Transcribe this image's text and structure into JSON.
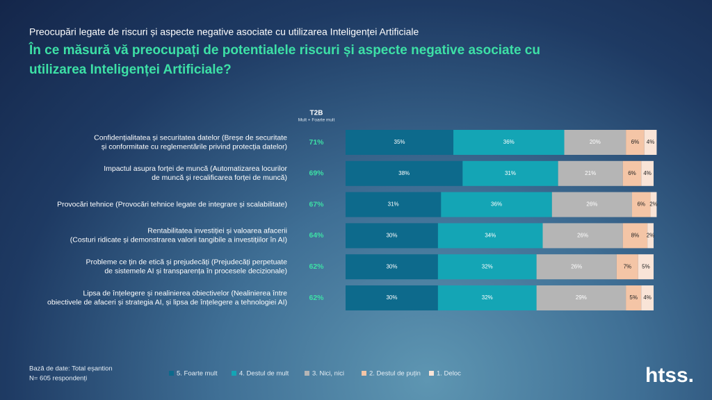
{
  "chart_data": {
    "type": "stacked-bar-horizontal",
    "supertitle": "Preocupări legate de riscuri și aspecte negative asociate cu utilizarea Inteligenței Artificiale",
    "title": [
      "În ce măsură vă preocupați de potentialele riscuri și aspecte negative asociate cu",
      "utilizarea Inteligenței Artificiale?"
    ],
    "categories": [
      [
        "Confidențialitatea și securitatea datelor (Breșe de securitate",
        "și conformitate cu reglementările privind protecția datelor)"
      ],
      [
        "Impactul asupra forței de muncă (Automatizarea locurilor",
        "de muncă și recalificarea forței de muncă)"
      ],
      [
        "Provocări tehnice (Provocări tehnice legate de integrare și scalabilitate)"
      ],
      [
        "Rentabilitatea investiției și valoarea afacerii",
        "(Costuri ridicate și demonstrarea valorii tangibile a investițiilor în AI)"
      ],
      [
        "Probleme ce țin de etică și prejudecăți (Prejudecăți perpetuate",
        "de sistemele AI și transparența în procesele decizionale)"
      ],
      [
        "Lipsa de înțelegere și nealinierea obiectivelor (Nealinierea între",
        "obiectivele de afaceri și strategia AI, și lipsa de înțelegere a tehnologiei AI)"
      ]
    ],
    "t2b": {
      "title": "T2B",
      "subtitle": "Mult + Foarte mult",
      "color": "#3de0a6",
      "values": [
        71,
        69,
        67,
        64,
        62,
        62
      ],
      "value_labels": [
        "71%",
        "69%",
        "67%",
        "64%",
        "62%",
        "62%"
      ]
    },
    "xlim": [
      0,
      100
    ],
    "series": [
      {
        "name": "5. Foarte mult",
        "color": "#0d6a8c",
        "label_color": "#ffffff",
        "values": [
          35,
          38,
          31,
          30,
          30,
          30
        ],
        "value_labels": [
          "35%",
          "38%",
          "31%",
          "30%",
          "30%",
          "30%"
        ]
      },
      {
        "name": "4. Destul de mult",
        "color": "#14a5b5",
        "label_color": "#ffffff",
        "values": [
          36,
          31,
          36,
          34,
          32,
          32
        ],
        "value_labels": [
          "36%",
          "31%",
          "36%",
          "34%",
          "32%",
          "32%"
        ]
      },
      {
        "name": "3. Nici, nici",
        "color": "#b5b5b5",
        "label_color": "#ffffff",
        "values": [
          20,
          21,
          26,
          26,
          26,
          29
        ],
        "value_labels": [
          "20%",
          "21%",
          "26%",
          "26%",
          "26%",
          "29%"
        ]
      },
      {
        "name": "2. Destul de puțin",
        "color": "#f4c5a6",
        "label_color": "#222222",
        "values": [
          6,
          6,
          6,
          8,
          7,
          5
        ],
        "value_labels": [
          "6%",
          "6%",
          "6%",
          "8%",
          "7%",
          "5%"
        ]
      },
      {
        "name": "1. Deloc",
        "color": "#f9e4d7",
        "label_color": "#222222",
        "values": [
          4,
          4,
          2,
          2,
          5,
          4
        ],
        "value_labels": [
          "4%",
          "4%",
          "2%",
          "2%",
          "5%",
          "4%"
        ]
      }
    ],
    "footnote": [
      "Bază de date: Total eșantion",
      "N= 605 respondenți"
    ],
    "logo": "htss."
  }
}
